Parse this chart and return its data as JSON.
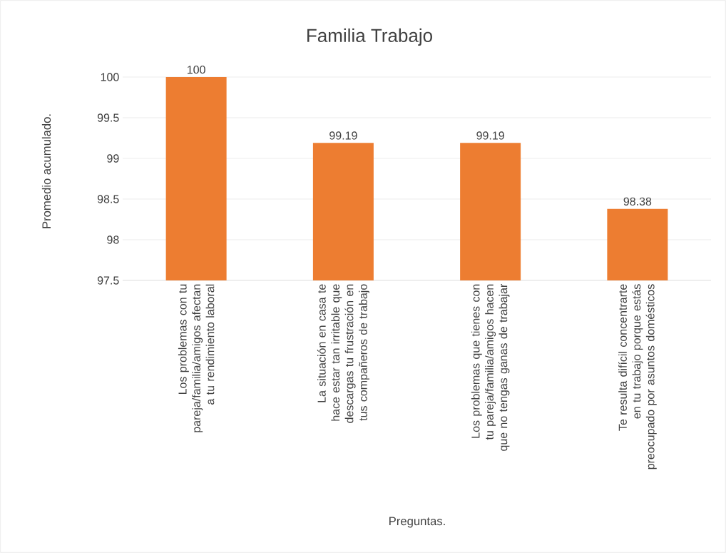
{
  "chart_data": {
    "type": "bar",
    "title": "Familia Trabajo",
    "xlabel": "Preguntas.",
    "ylabel": "Promedio acumulado.",
    "categories": [
      "Los problemas con tu pareja/familia/amigos afectan a tu rendimiento laboral",
      "La situación en casa te hace estar tan irritable que descargas tu frustración en tus compañeros de trabajo",
      "Los problemas que tienes con tu pareja/familia/amigos hacen que no tengas ganas de trabajar",
      "Te resulta difícil concentrarte en tu trabajo porque estás preocupado por asuntos domésticos"
    ],
    "values": [
      100,
      99.19,
      99.19,
      98.38
    ],
    "color": "#ed7d31",
    "ylim": [
      97.5,
      100
    ],
    "yticks": [
      97.5,
      98,
      98.5,
      99,
      99.5,
      100
    ],
    "grid": "y",
    "data_labels": true
  }
}
